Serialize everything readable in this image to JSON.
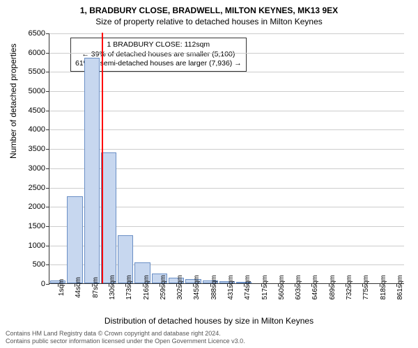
{
  "title_main": "1, BRADBURY CLOSE, BRADWELL, MILTON KEYNES, MK13 9EX",
  "title_sub": "Size of property relative to detached houses in Milton Keynes",
  "ylabel": "Number of detached properties",
  "xlabel": "Distribution of detached houses by size in Milton Keynes",
  "chart": {
    "type": "histogram",
    "ylim": [
      0,
      6500
    ],
    "ytick_step": 500,
    "x_start": 1,
    "x_step": 43,
    "xtick_count": 21,
    "bar_color": "#c7d7ef",
    "bar_border": "#6a8fc5",
    "background_color": "#ffffff",
    "grid_color": "#cccccc",
    "values": [
      80,
      2250,
      5850,
      3400,
      1250,
      550,
      260,
      150,
      110,
      80,
      50,
      40,
      0,
      0,
      0,
      0,
      0,
      0,
      0,
      0,
      0
    ],
    "marker": {
      "sqm": 112,
      "color": "#ff0000",
      "height_value": 6500
    }
  },
  "annotation": {
    "line1": "1 BRADBURY CLOSE: 112sqm",
    "line2": "← 39% of detached houses are smaller (5,100)",
    "line3": "61% of semi-detached houses are larger (7,936) →"
  },
  "footer": {
    "line1": "Contains HM Land Registry data © Crown copyright and database right 2024.",
    "line2": "Contains public sector information licensed under the Open Government Licence v3.0."
  }
}
